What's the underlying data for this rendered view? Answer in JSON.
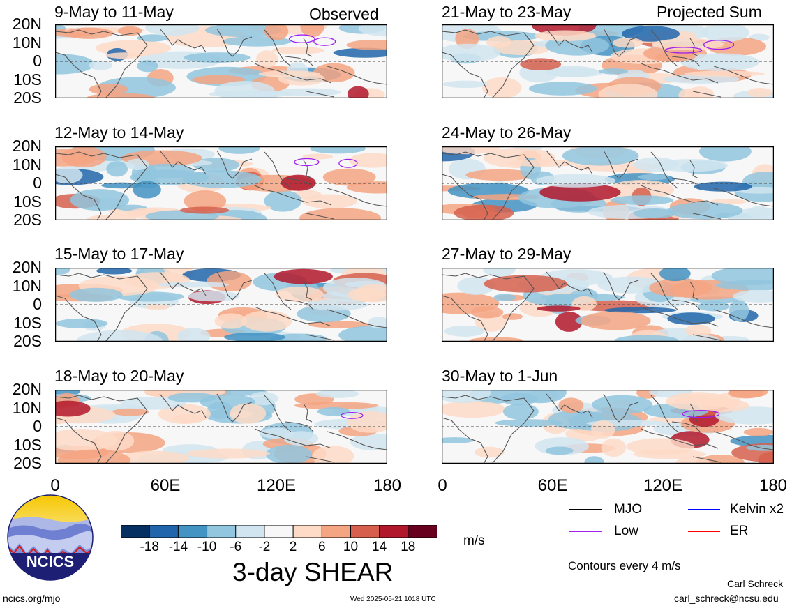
{
  "headers": {
    "observed": "Observed",
    "projected": "Projected Sum"
  },
  "panels_left": [
    {
      "title": "9-May to 11-May",
      "seed": 3
    },
    {
      "title": "12-May to 14-May",
      "seed": 7
    },
    {
      "title": "15-May to 17-May",
      "seed": 11
    },
    {
      "title": "18-May to 20-May",
      "seed": 17
    }
  ],
  "panels_right": [
    {
      "title": "21-May to 23-May",
      "seed": 23
    },
    {
      "title": "24-May to 26-May",
      "seed": 29
    },
    {
      "title": "27-May to 29-May",
      "seed": 31
    },
    {
      "title": "30-May to 1-Jun",
      "seed": 37
    }
  ],
  "y_ticks": [
    "20N",
    "10N",
    "0",
    "10S",
    "20S"
  ],
  "x_ticks": [
    "0",
    "60E",
    "120E",
    "180"
  ],
  "colorbar": {
    "colors": [
      "#053061",
      "#2166ac",
      "#4393c3",
      "#92c5de",
      "#d1e5f0",
      "#f7f7f7",
      "#fddbc7",
      "#f4a582",
      "#d6604d",
      "#b2182b",
      "#67001f"
    ],
    "ticks": [
      "-18",
      "-14",
      "-10",
      "-6",
      "-2",
      "2",
      "6",
      "10",
      "14",
      "18"
    ],
    "units": "m/s",
    "title": "3-day SHEAR"
  },
  "legend": {
    "mjo": "MJO",
    "kelvin": "Kelvin x2",
    "low": "Low",
    "er": "ER",
    "colors": {
      "mjo": "#000000",
      "kelvin": "#0000ff",
      "low": "#a020f0",
      "er": "#ff0000"
    },
    "contours_note": "Contours every 4 m/s"
  },
  "logo": {
    "text": "NCICS"
  },
  "footer": {
    "url": "ncics.org/mjo",
    "timestamp": "Wed 2025-05-21 1018 UTC",
    "author": "Carl Schreck",
    "email": "carl_schreck@ncsu.edu"
  }
}
